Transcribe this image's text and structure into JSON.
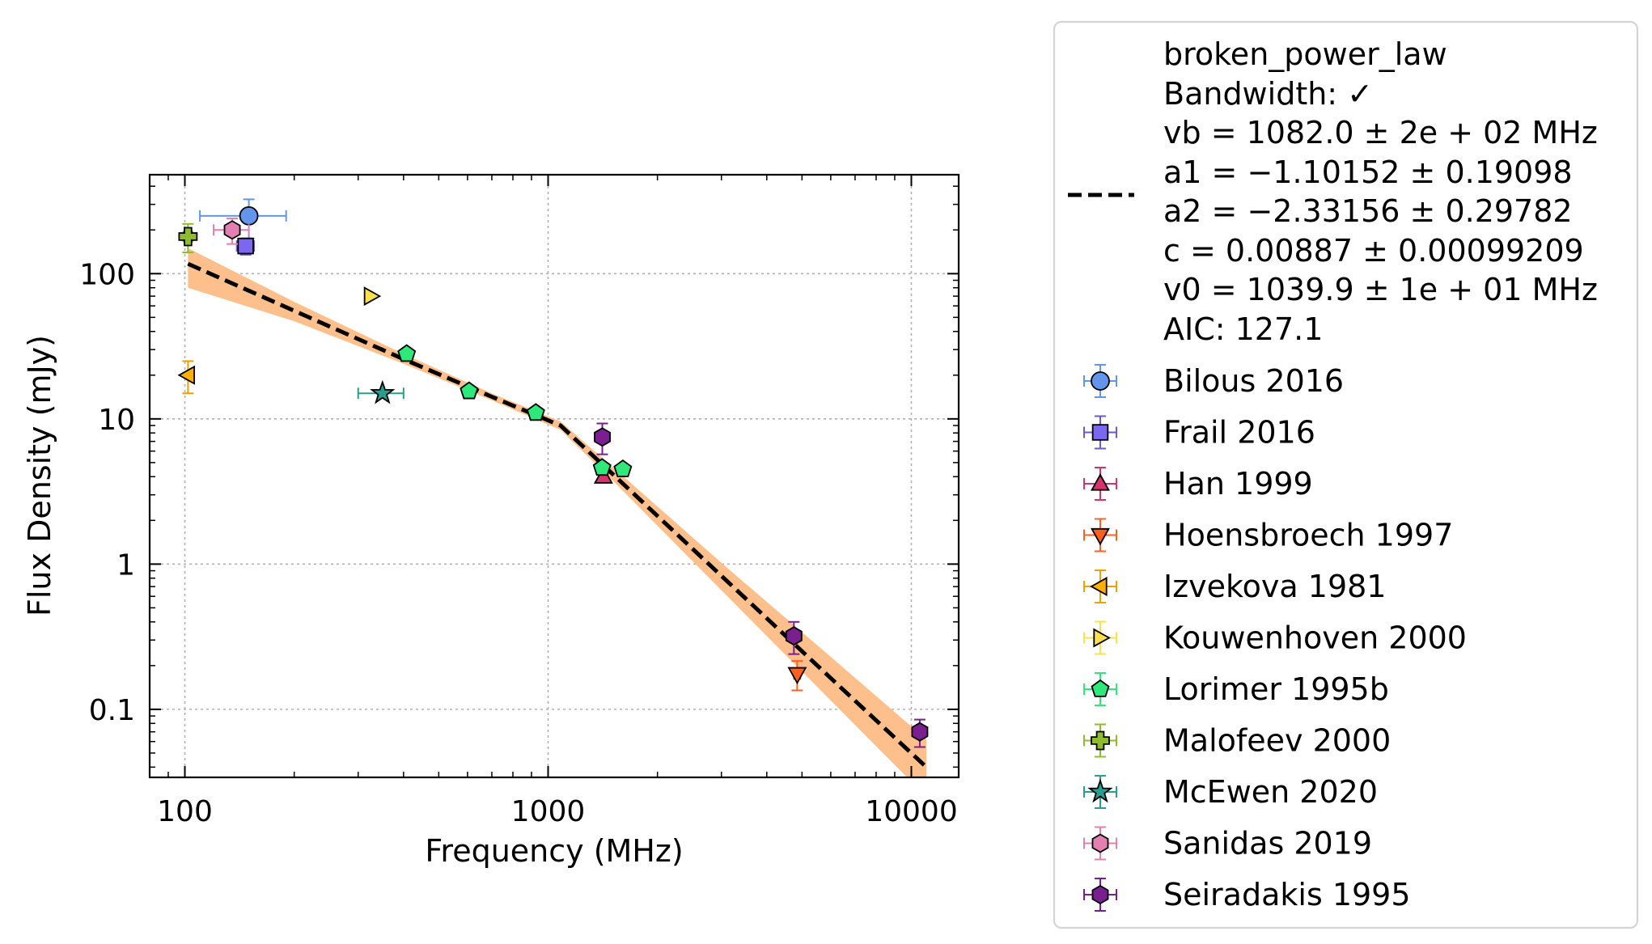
{
  "chart_data": {
    "type": "scatter",
    "xlabel": "Frequency (MHz)",
    "ylabel": "Flux Density (mJy)",
    "x_scale": "log",
    "y_scale": "log",
    "xlim": [
      80,
      13500
    ],
    "ylim": [
      0.034,
      480
    ],
    "grid": true,
    "x_ticks": [
      {
        "value": 100,
        "label": "100"
      },
      {
        "value": 1000,
        "label": "1000"
      },
      {
        "value": 10000,
        "label": "10000"
      }
    ],
    "y_ticks": [
      {
        "value": 0.1,
        "label": "0.1"
      },
      {
        "value": 1,
        "label": "1"
      },
      {
        "value": 10,
        "label": "10"
      },
      {
        "value": 100,
        "label": "100"
      }
    ],
    "legend_placement": "outside-right",
    "fit": {
      "model_label": "broken_power_law",
      "info_lines": [
        "broken_power_law",
        "Bandwidth: ✓",
        "vb = 1082.0 ± 2e + 02 MHz",
        "a1 = −1.10152 ± 0.19098",
        "a2 = −2.33156 ± 0.29782",
        "c = 0.00887 ± 0.00099209",
        "v0 = 1039.9 ± 1e + 01 MHz",
        "AIC: 127.1"
      ],
      "line_color": "#000000",
      "band_color": "#fdbf8b",
      "line_x": [
        102,
        200,
        400,
        700,
        1082,
        1500,
        3000,
        6000,
        11000
      ],
      "line_y": [
        116.9,
        55.5,
        25.8,
        14.2,
        9.0,
        4.21,
        0.83,
        0.164,
        0.04
      ],
      "band_upper": [
        150,
        64,
        28,
        15.0,
        9.6,
        4.7,
        1.02,
        0.23,
        0.062
      ],
      "band_lower": [
        80,
        47,
        24,
        13.4,
        8.4,
        3.8,
        0.66,
        0.115,
        0.025
      ]
    },
    "series": [
      {
        "name": "Bilous 2016",
        "marker": "circle",
        "color": "#6495ed",
        "edge": "#6495ed",
        "points": [
          {
            "x": 150,
            "y": 250,
            "xerr": [
              40,
              40
            ],
            "yerr": [
              75,
              75
            ]
          }
        ]
      },
      {
        "name": "Frail 2016",
        "marker": "square",
        "color": "#7b68ee",
        "edge": "#6a5acd",
        "points": [
          {
            "x": 147,
            "y": 155,
            "xerr": [
              8,
              8
            ],
            "yerr": [
              20,
              20
            ]
          }
        ]
      },
      {
        "name": "Han 1999",
        "marker": "triangle-up",
        "color": "#d6336c",
        "edge": "#d6336c",
        "points": [
          {
            "x": 1420,
            "y": 4.0,
            "xerr": [
              0,
              0
            ],
            "yerr": [
              0.2,
              0.2
            ]
          }
        ]
      },
      {
        "name": "Hoensbroech 1997",
        "marker": "triangle-down",
        "color": "#ff5f1f",
        "edge": "#ff5f1f",
        "points": [
          {
            "x": 4850,
            "y": 0.175,
            "xerr": [
              100,
              100
            ],
            "yerr": [
              0.04,
              0.04
            ]
          }
        ]
      },
      {
        "name": "Izvekova 1981",
        "marker": "triangle-left",
        "color": "#ffb000",
        "edge": "#f0a000",
        "points": [
          {
            "x": 102,
            "y": 20,
            "xerr": [
              0,
              0
            ],
            "yerr": [
              5,
              5
            ]
          }
        ]
      },
      {
        "name": "Kouwenhoven 2000",
        "marker": "triangle-right",
        "color": "#f9e04c",
        "edge": "#f9e04c",
        "points": [
          {
            "x": 325,
            "y": 70,
            "xerr": [
              0,
              0
            ],
            "yerr": [
              0,
              0
            ]
          }
        ]
      },
      {
        "name": "Lorimer 1995b",
        "marker": "pentagon",
        "color": "#2ee87a",
        "edge": "#2ee87a",
        "points": [
          {
            "x": 408,
            "y": 28,
            "xerr": [
              0,
              0
            ],
            "yerr": [
              0,
              0
            ]
          },
          {
            "x": 606,
            "y": 15.5,
            "xerr": [
              0,
              0
            ],
            "yerr": [
              0,
              0
            ]
          },
          {
            "x": 925,
            "y": 11,
            "xerr": [
              0,
              0
            ],
            "yerr": [
              0,
              0
            ]
          },
          {
            "x": 1408,
            "y": 4.6,
            "xerr": [
              0,
              0
            ],
            "yerr": [
              0,
              0
            ]
          },
          {
            "x": 1606,
            "y": 4.5,
            "xerr": [
              0,
              0
            ],
            "yerr": [
              0,
              0
            ]
          }
        ]
      },
      {
        "name": "Malofeev 2000",
        "marker": "plus",
        "color": "#8fbc2f",
        "edge": "#8fbc2f",
        "points": [
          {
            "x": 102,
            "y": 180,
            "xerr": [
              3,
              3
            ],
            "yerr": [
              40,
              40
            ]
          }
        ]
      },
      {
        "name": "McEwen 2020",
        "marker": "star",
        "color": "#2a9d8f",
        "edge": "#2a9d8f",
        "points": [
          {
            "x": 350,
            "y": 15,
            "xerr": [
              50,
              50
            ],
            "yerr": [
              0,
              0
            ]
          }
        ]
      },
      {
        "name": "Sanidas 2019",
        "marker": "hexagon",
        "color": "#e37fb1",
        "edge": "#e37fb1",
        "points": [
          {
            "x": 135,
            "y": 200,
            "xerr": [
              15,
              15
            ],
            "yerr": [
              40,
              40
            ]
          }
        ]
      },
      {
        "name": "Seiradakis 1995",
        "marker": "hexagon",
        "color": "#7a1f8f",
        "edge": "#7a1f8f",
        "points": [
          {
            "x": 1410,
            "y": 7.5,
            "xerr": [
              0,
              0
            ],
            "yerr": [
              1.8,
              1.8
            ]
          },
          {
            "x": 4750,
            "y": 0.32,
            "xerr": [
              0,
              0
            ],
            "yerr": [
              0.08,
              0.08
            ]
          },
          {
            "x": 10550,
            "y": 0.07,
            "xerr": [
              0,
              0
            ],
            "yerr": [
              0.015,
              0.015
            ]
          }
        ]
      }
    ]
  }
}
